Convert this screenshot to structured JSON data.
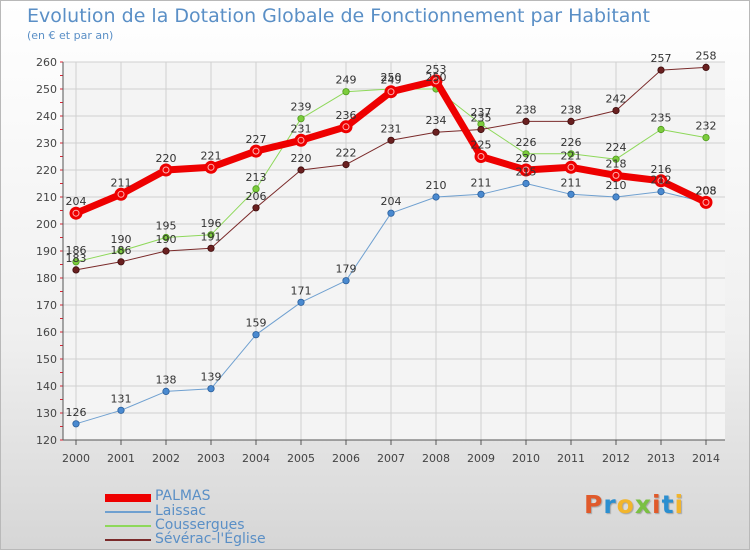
{
  "title": "Evolution de la Dotation Globale de Fonctionnement par Habitant",
  "subtitle": "(en € et par an)",
  "logo": {
    "text": "Proxiti",
    "colors": [
      "#e05a2b",
      "#2c8fd0",
      "#f2b52c",
      "#7bc043",
      "#e05a2b",
      "#2c8fd0",
      "#f2b52c"
    ]
  },
  "chart_data": {
    "type": "line",
    "title": "Evolution de la Dotation Globale de Fonctionnement par Habitant",
    "ylabel": "(en € et par an)",
    "xlabel": "",
    "ylim": [
      120,
      260
    ],
    "yticks": [
      120,
      130,
      140,
      150,
      160,
      170,
      180,
      190,
      200,
      210,
      220,
      230,
      240,
      250,
      260
    ],
    "grid": true,
    "legend_position": "bottom-left",
    "categories": [
      "2000",
      "2001",
      "2002",
      "2003",
      "2004",
      "2005",
      "2006",
      "2007",
      "2008",
      "2009",
      "2010",
      "2011",
      "2012",
      "2013",
      "2014"
    ],
    "series": [
      {
        "name": "PALMAS",
        "color": "#ee0000",
        "values": [
          204,
          211,
          220,
          221,
          227,
          231,
          236,
          249,
          253,
          225,
          220,
          221,
          218,
          216,
          208
        ]
      },
      {
        "name": "Laissac",
        "color": "#6fa0d0",
        "values": [
          126,
          131,
          138,
          139,
          159,
          171,
          179,
          204,
          210,
          211,
          215,
          211,
          210,
          212,
          208
        ]
      },
      {
        "name": "Coussergues",
        "color": "#8ed85a",
        "values": [
          186,
          190,
          195,
          196,
          213,
          239,
          249,
          250,
          250,
          237,
          226,
          226,
          224,
          235,
          232
        ]
      },
      {
        "name": "Sévérac-l'Église",
        "color": "#7a2a2a",
        "values": [
          183,
          186,
          190,
          191,
          206,
          220,
          222,
          231,
          234,
          235,
          238,
          238,
          242,
          257,
          258
        ]
      }
    ]
  }
}
